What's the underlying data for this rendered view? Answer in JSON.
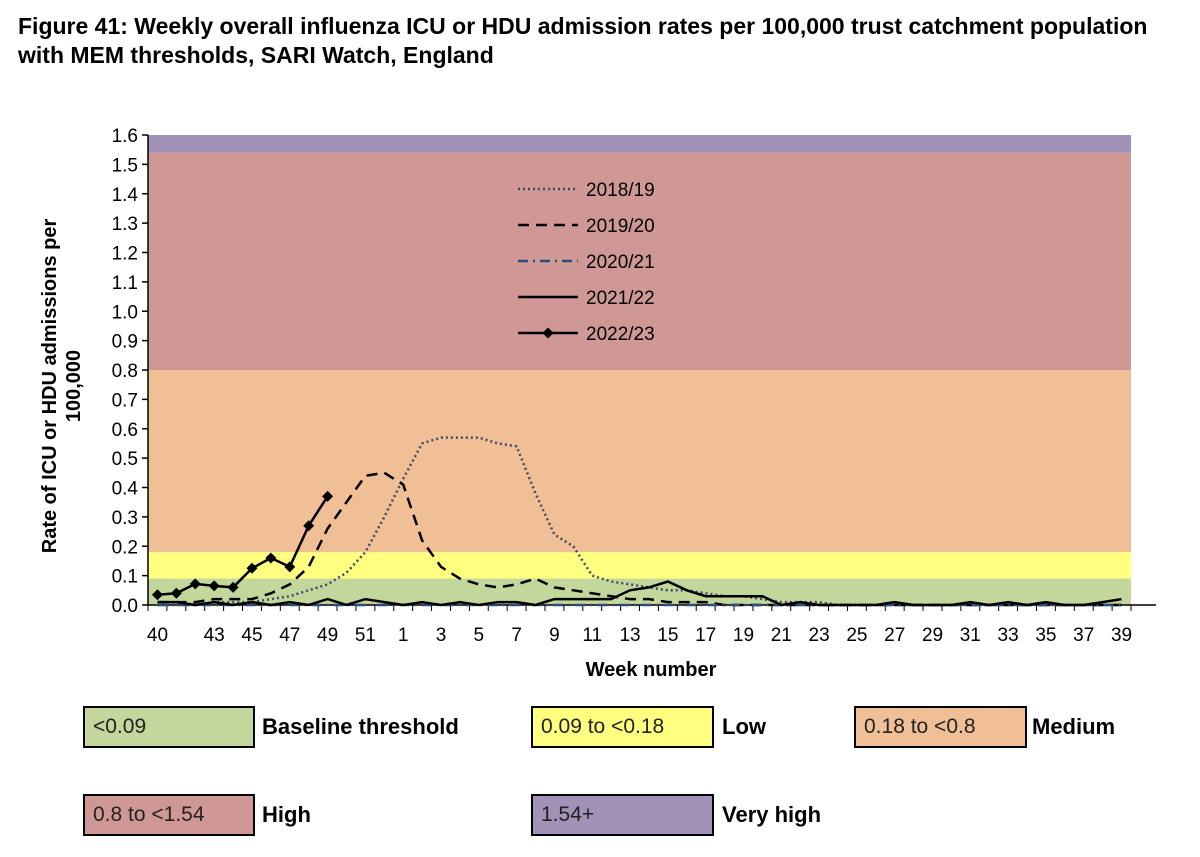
{
  "title": "Figure 41: Weekly overall influenza ICU or HDU admission rates per 100,000 trust catchment population with MEM thresholds, SARI Watch, England",
  "chart_data": {
    "type": "line",
    "xlabel": "Week number",
    "ylabel": "Rate of ICU or HDU admissions per 100,000",
    "ylim": [
      0,
      1.6
    ],
    "y_ticks": [
      "0.0",
      "0.1",
      "0.2",
      "0.3",
      "0.4",
      "0.5",
      "0.6",
      "0.7",
      "0.8",
      "0.9",
      "1.0",
      "1.1",
      "1.2",
      "1.3",
      "1.4",
      "1.5",
      "1.6"
    ],
    "x": [
      40,
      41,
      42,
      43,
      44,
      45,
      46,
      47,
      48,
      49,
      50,
      51,
      52,
      1,
      2,
      3,
      4,
      5,
      6,
      7,
      8,
      9,
      10,
      11,
      12,
      13,
      14,
      15,
      16,
      17,
      18,
      19,
      20,
      21,
      22,
      23,
      24,
      25,
      26,
      27,
      28,
      29,
      30,
      31,
      32,
      33,
      34,
      35,
      36,
      37,
      38,
      39
    ],
    "x_tick_labels": [
      "40",
      "43",
      "45",
      "47",
      "49",
      "51",
      "1",
      "3",
      "5",
      "7",
      "9",
      "11",
      "13",
      "15",
      "17",
      "19",
      "21",
      "23",
      "25",
      "27",
      "29",
      "31",
      "33",
      "35",
      "37",
      "39"
    ],
    "grid": false,
    "legend_position": "top-center",
    "thresholds": [
      {
        "label": "<0.09",
        "name": "Baseline threshold",
        "from": 0,
        "to": 0.09,
        "color": "#c3d69b"
      },
      {
        "label": "0.09 to <0.18",
        "name": "Low",
        "from": 0.09,
        "to": 0.18,
        "color": "#ffff80"
      },
      {
        "label": "0.18 to <0.8",
        "name": "Medium",
        "from": 0.18,
        "to": 0.8,
        "color": "#f0bf95"
      },
      {
        "label": "0.8 to <1.54",
        "name": "High",
        "from": 0.8,
        "to": 1.54,
        "color": "#d09894"
      },
      {
        "label": "1.54+",
        "name": "Very high",
        "from": 1.54,
        "to": 1.6,
        "color": "#a392b8"
      }
    ],
    "series": [
      {
        "name": "2018/19",
        "style": "dotted",
        "color": "#3d4a6b",
        "values": [
          0.0,
          0.0,
          0.0,
          0.01,
          0.01,
          0.01,
          0.02,
          0.03,
          0.05,
          0.07,
          0.11,
          0.18,
          0.3,
          0.43,
          0.55,
          0.57,
          0.57,
          0.57,
          0.55,
          0.54,
          0.38,
          0.24,
          0.2,
          0.1,
          0.08,
          0.07,
          0.06,
          0.05,
          0.05,
          0.04,
          0.03,
          0.03,
          0.02,
          0.01,
          0.01,
          0.01,
          0.0,
          0.0,
          0.0,
          0.0,
          0.0,
          0.0,
          0.0,
          0.0,
          0.0,
          0.0,
          0.0,
          0.0,
          0.0,
          0.0,
          0.0,
          0.0
        ]
      },
      {
        "name": "2019/20",
        "style": "dashed",
        "color": "#000000",
        "values": [
          0.01,
          0.01,
          0.01,
          0.02,
          0.02,
          0.02,
          0.04,
          0.07,
          0.13,
          0.26,
          0.35,
          0.44,
          0.45,
          0.41,
          0.22,
          0.13,
          0.09,
          0.07,
          0.06,
          0.07,
          0.09,
          0.06,
          0.05,
          0.04,
          0.03,
          0.02,
          0.02,
          0.01,
          0.01,
          0.01,
          0.0,
          0.0,
          0.0,
          0.0,
          0.0,
          0.0,
          0.0,
          0.0,
          0.0,
          0.0,
          0.0,
          0.0,
          0.0,
          0.0,
          0.0,
          0.0,
          0.0,
          0.0,
          0.0,
          0.0,
          0.0,
          0.0
        ]
      },
      {
        "name": "2020/21",
        "style": "dashdot",
        "color": "#2a4e7f",
        "values": [
          0.0,
          0.0,
          0.0,
          0.0,
          0.0,
          0.0,
          0.0,
          0.0,
          0.0,
          0.0,
          0.0,
          0.0,
          0.0,
          0.0,
          0.0,
          0.0,
          0.0,
          0.0,
          0.0,
          0.0,
          0.0,
          0.0,
          0.0,
          0.0,
          0.0,
          0.0,
          0.0,
          0.0,
          0.0,
          0.0,
          0.0,
          0.0,
          0.0,
          0.0,
          0.0,
          0.0,
          0.0,
          0.0,
          0.0,
          0.0,
          0.0,
          0.0,
          0.0,
          0.0,
          0.0,
          0.0,
          0.0,
          0.0,
          0.0,
          0.0,
          0.0,
          0.0
        ]
      },
      {
        "name": "2021/22",
        "style": "solid",
        "color": "#000000",
        "values": [
          0.01,
          0.01,
          0.0,
          0.01,
          0.0,
          0.01,
          0.0,
          0.01,
          0.0,
          0.02,
          0.0,
          0.02,
          0.01,
          0.0,
          0.01,
          0.0,
          0.01,
          0.0,
          0.01,
          0.01,
          0.0,
          0.02,
          0.02,
          0.02,
          0.02,
          0.05,
          0.06,
          0.08,
          0.05,
          0.03,
          0.03,
          0.03,
          0.03,
          0.0,
          0.01,
          0.0,
          0.0,
          0.0,
          0.0,
          0.01,
          0.0,
          0.0,
          0.0,
          0.01,
          0.0,
          0.01,
          0.0,
          0.01,
          0.0,
          0.0,
          0.01,
          0.02
        ]
      },
      {
        "name": "2022/23",
        "style": "solid-diamond",
        "color": "#000000",
        "values": [
          0.035,
          0.04,
          0.072,
          0.065,
          0.06,
          0.125,
          0.16,
          0.13,
          0.27,
          0.37,
          null,
          null,
          null,
          null,
          null,
          null,
          null,
          null,
          null,
          null,
          null,
          null,
          null,
          null,
          null,
          null,
          null,
          null,
          null,
          null,
          null,
          null,
          null,
          null,
          null,
          null,
          null,
          null,
          null,
          null,
          null,
          null,
          null,
          null,
          null,
          null,
          null,
          null,
          null,
          null,
          null,
          null
        ]
      }
    ]
  }
}
